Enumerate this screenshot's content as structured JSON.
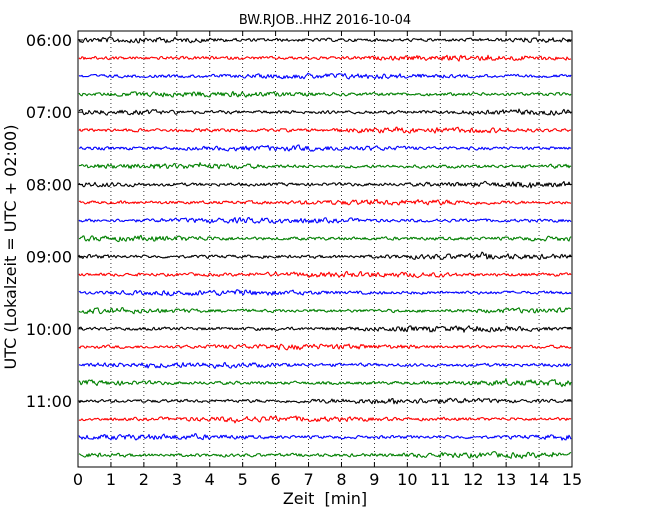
{
  "chart_data": {
    "type": "line",
    "title": "BW.RJOB..HHZ 2016-10-04",
    "xlabel": "Zeit  [min]",
    "ylabel": "UTC (Lokalzeit = UTC + 02:00)",
    "xlim": [
      0,
      15
    ],
    "x_ticks": [
      "0",
      "1",
      "2",
      "3",
      "4",
      "5",
      "6",
      "7",
      "8",
      "9",
      "10",
      "11",
      "12",
      "13",
      "14",
      "15"
    ],
    "y_ticks": [
      "06:00",
      "07:00",
      "08:00",
      "09:00",
      "10:00",
      "11:00"
    ],
    "grid": "vertical-dotted",
    "trace_interval_minutes": 15,
    "start_time": "06:00",
    "trace_count": 24,
    "trace_colors": [
      "#000000",
      "#ff0000",
      "#0000ff",
      "#008000"
    ]
  }
}
